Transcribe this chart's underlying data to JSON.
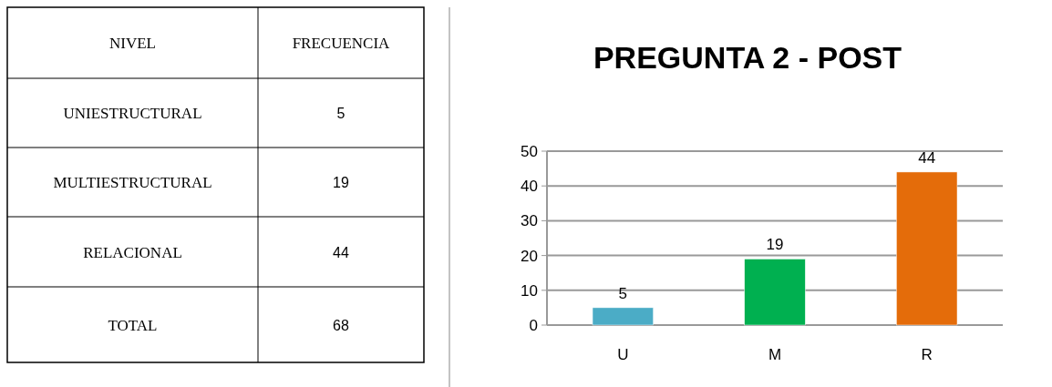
{
  "chart_data": [
    {
      "type": "other",
      "xlabel": "NIVEL",
      "ylabel": "FRECUENCIA",
      "categories": [
        "UNIESTRUCTURAL",
        "MULTIESTRUCTURAL",
        "RELACIONAL",
        "TOTAL"
      ],
      "values": [
        5,
        19,
        44,
        68
      ],
      "data_labels": true
    },
    {
      "type": "bar",
      "title": "PREGUNTA 2 - POST",
      "categories": [
        "U",
        "M",
        "R"
      ],
      "values": [
        5,
        19,
        44
      ],
      "colors": [
        "#4bacc6",
        "#00b050",
        "#e46c0a"
      ],
      "ylim": [
        0,
        50
      ],
      "yticks": [
        0,
        10,
        20,
        30,
        40,
        50
      ],
      "grid": "y",
      "data_labels": true
    }
  ]
}
